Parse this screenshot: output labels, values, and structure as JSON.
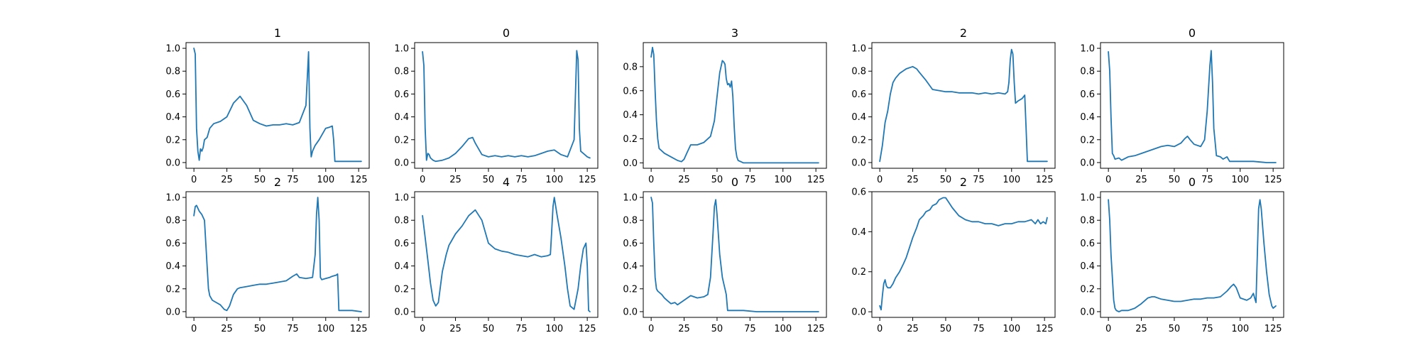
{
  "colors": {
    "series": "#1f77b4",
    "axes": "#000000",
    "background": "#ffffff"
  },
  "chart_data": [
    {
      "type": "line",
      "title": "1",
      "xlim": [
        -6,
        133
      ],
      "ylim": [
        -0.05,
        1.05
      ],
      "xticks": [
        0,
        25,
        50,
        75,
        100,
        125
      ],
      "yticks": [
        0.0,
        0.2,
        0.4,
        0.6,
        0.8,
        1.0
      ],
      "grid": false,
      "series": [
        {
          "x": [
            0,
            1,
            2,
            3,
            4,
            5,
            6,
            7,
            8,
            10,
            12,
            15,
            20,
            25,
            30,
            35,
            40,
            45,
            50,
            55,
            60,
            65,
            70,
            75,
            80,
            85,
            87,
            88,
            89,
            90,
            92,
            95,
            100,
            103,
            105,
            106,
            107,
            110,
            115,
            120,
            127
          ],
          "y": [
            1.0,
            0.95,
            0.3,
            0.1,
            0.02,
            0.12,
            0.1,
            0.13,
            0.2,
            0.22,
            0.3,
            0.34,
            0.36,
            0.4,
            0.52,
            0.58,
            0.5,
            0.37,
            0.34,
            0.32,
            0.33,
            0.33,
            0.34,
            0.33,
            0.35,
            0.5,
            0.97,
            0.3,
            0.05,
            0.1,
            0.15,
            0.2,
            0.3,
            0.31,
            0.32,
            0.2,
            0.01,
            0.01,
            0.01,
            0.01,
            0.01
          ]
        }
      ]
    },
    {
      "type": "line",
      "title": "0",
      "xlim": [
        -6,
        133
      ],
      "ylim": [
        -0.05,
        1.05
      ],
      "xticks": [
        0,
        25,
        50,
        75,
        100,
        125
      ],
      "yticks": [
        0.0,
        0.2,
        0.4,
        0.6,
        0.8,
        1.0
      ],
      "grid": false,
      "series": [
        {
          "x": [
            0,
            1,
            2,
            3,
            4,
            5,
            6,
            8,
            10,
            15,
            20,
            25,
            30,
            35,
            38,
            40,
            45,
            50,
            55,
            60,
            65,
            70,
            75,
            80,
            85,
            90,
            95,
            100,
            105,
            110,
            115,
            117,
            118,
            119,
            120,
            122,
            125,
            127
          ],
          "y": [
            0.97,
            0.85,
            0.3,
            0.02,
            0.08,
            0.07,
            0.04,
            0.02,
            0.01,
            0.02,
            0.04,
            0.08,
            0.14,
            0.21,
            0.22,
            0.17,
            0.07,
            0.05,
            0.06,
            0.05,
            0.06,
            0.05,
            0.06,
            0.05,
            0.06,
            0.08,
            0.1,
            0.11,
            0.07,
            0.05,
            0.2,
            0.98,
            0.9,
            0.3,
            0.1,
            0.08,
            0.05,
            0.04
          ]
        }
      ]
    },
    {
      "type": "line",
      "title": "3",
      "xlim": [
        -6,
        133
      ],
      "ylim": [
        -0.045,
        1.0
      ],
      "xticks": [
        0,
        25,
        50,
        75,
        100,
        125
      ],
      "yticks": [
        0.0,
        0.2,
        0.4,
        0.6,
        0.8
      ],
      "grid": false,
      "series": [
        {
          "x": [
            0,
            1,
            2,
            3,
            4,
            5,
            6,
            8,
            10,
            15,
            20,
            23,
            25,
            27,
            30,
            35,
            40,
            45,
            48,
            50,
            52,
            54,
            55,
            56,
            57,
            58,
            59,
            60,
            61,
            62,
            63,
            64,
            65,
            66,
            68,
            70,
            75,
            80,
            90,
            100,
            110,
            120,
            127
          ],
          "y": [
            0.88,
            0.96,
            0.9,
            0.6,
            0.35,
            0.2,
            0.12,
            0.1,
            0.08,
            0.05,
            0.02,
            0.01,
            0.03,
            0.08,
            0.15,
            0.15,
            0.17,
            0.22,
            0.35,
            0.55,
            0.75,
            0.85,
            0.84,
            0.82,
            0.7,
            0.65,
            0.66,
            0.63,
            0.68,
            0.55,
            0.3,
            0.12,
            0.05,
            0.02,
            0.01,
            0.0,
            0.0,
            0.0,
            0.0,
            0.0,
            0.0,
            0.0,
            0.0
          ]
        }
      ]
    },
    {
      "type": "line",
      "title": "2",
      "xlim": [
        -6,
        133
      ],
      "ylim": [
        -0.05,
        1.05
      ],
      "xticks": [
        0,
        25,
        50,
        75,
        100,
        125
      ],
      "yticks": [
        0.0,
        0.2,
        0.4,
        0.6,
        0.8,
        1.0
      ],
      "grid": false,
      "series": [
        {
          "x": [
            0,
            2,
            4,
            6,
            8,
            10,
            12,
            15,
            20,
            25,
            28,
            30,
            35,
            40,
            45,
            50,
            55,
            60,
            65,
            70,
            75,
            80,
            85,
            90,
            95,
            97,
            98,
            99,
            100,
            101,
            102,
            103,
            105,
            108,
            110,
            111,
            112,
            115,
            120,
            127
          ],
          "y": [
            0.01,
            0.15,
            0.35,
            0.45,
            0.6,
            0.7,
            0.74,
            0.78,
            0.82,
            0.84,
            0.82,
            0.79,
            0.72,
            0.64,
            0.63,
            0.62,
            0.62,
            0.61,
            0.61,
            0.61,
            0.6,
            0.61,
            0.6,
            0.61,
            0.6,
            0.62,
            0.7,
            0.9,
            0.99,
            0.95,
            0.7,
            0.52,
            0.54,
            0.56,
            0.59,
            0.3,
            0.01,
            0.01,
            0.01,
            0.01
          ]
        }
      ]
    },
    {
      "type": "line",
      "title": "0",
      "xlim": [
        -6,
        133
      ],
      "ylim": [
        -0.05,
        1.05
      ],
      "xticks": [
        0,
        25,
        50,
        75,
        100,
        125
      ],
      "yticks": [
        0.0,
        0.2,
        0.4,
        0.6,
        0.8,
        1.0
      ],
      "grid": false,
      "series": [
        {
          "x": [
            0,
            1,
            2,
            3,
            4,
            5,
            8,
            10,
            15,
            20,
            25,
            30,
            35,
            40,
            45,
            50,
            55,
            58,
            60,
            62,
            65,
            70,
            73,
            75,
            77,
            78,
            79,
            80,
            82,
            85,
            87,
            90,
            92,
            95,
            100,
            110,
            120,
            127
          ],
          "y": [
            0.97,
            0.8,
            0.4,
            0.08,
            0.06,
            0.03,
            0.04,
            0.02,
            0.05,
            0.06,
            0.08,
            0.1,
            0.12,
            0.14,
            0.15,
            0.14,
            0.17,
            0.21,
            0.23,
            0.2,
            0.16,
            0.14,
            0.2,
            0.45,
            0.85,
            0.98,
            0.7,
            0.3,
            0.06,
            0.05,
            0.03,
            0.05,
            0.01,
            0.01,
            0.01,
            0.01,
            0.0,
            0.0
          ]
        }
      ]
    },
    {
      "type": "line",
      "title": "2",
      "xlim": [
        -6,
        133
      ],
      "ylim": [
        -0.05,
        1.05
      ],
      "xticks": [
        0,
        25,
        50,
        75,
        100,
        125
      ],
      "yticks": [
        0.0,
        0.2,
        0.4,
        0.6,
        0.8,
        1.0
      ],
      "grid": false,
      "series": [
        {
          "x": [
            0,
            1,
            2,
            4,
            6,
            8,
            10,
            11,
            12,
            14,
            17,
            20,
            23,
            25,
            27,
            30,
            33,
            35,
            40,
            45,
            50,
            55,
            60,
            65,
            70,
            75,
            78,
            80,
            85,
            90,
            92,
            93,
            94,
            95,
            96,
            97,
            100,
            103,
            105,
            108,
            109,
            110,
            115,
            120,
            127
          ],
          "y": [
            0.84,
            0.92,
            0.93,
            0.88,
            0.85,
            0.8,
            0.4,
            0.2,
            0.14,
            0.1,
            0.08,
            0.06,
            0.02,
            0.01,
            0.05,
            0.15,
            0.2,
            0.21,
            0.22,
            0.23,
            0.24,
            0.24,
            0.25,
            0.26,
            0.27,
            0.31,
            0.33,
            0.3,
            0.29,
            0.3,
            0.5,
            0.85,
            1.0,
            0.8,
            0.3,
            0.28,
            0.29,
            0.3,
            0.31,
            0.32,
            0.33,
            0.01,
            0.01,
            0.01,
            0.0
          ]
        }
      ]
    },
    {
      "type": "line",
      "title": "4",
      "xlim": [
        -6,
        133
      ],
      "ylim": [
        -0.05,
        1.05
      ],
      "xticks": [
        0,
        25,
        50,
        75,
        100,
        125
      ],
      "yticks": [
        0.0,
        0.2,
        0.4,
        0.6,
        0.8,
        1.0
      ],
      "grid": false,
      "series": [
        {
          "x": [
            0,
            2,
            4,
            6,
            8,
            10,
            12,
            15,
            18,
            20,
            25,
            30,
            35,
            40,
            45,
            50,
            55,
            60,
            65,
            70,
            75,
            80,
            85,
            90,
            95,
            97,
            98,
            99,
            100,
            102,
            105,
            108,
            110,
            112,
            115,
            118,
            120,
            122,
            124,
            125,
            126,
            127
          ],
          "y": [
            0.84,
            0.65,
            0.45,
            0.25,
            0.1,
            0.05,
            0.08,
            0.35,
            0.5,
            0.58,
            0.68,
            0.75,
            0.84,
            0.89,
            0.8,
            0.6,
            0.55,
            0.53,
            0.52,
            0.5,
            0.49,
            0.48,
            0.5,
            0.48,
            0.49,
            0.5,
            0.7,
            0.92,
            1.0,
            0.85,
            0.65,
            0.4,
            0.2,
            0.05,
            0.02,
            0.2,
            0.4,
            0.55,
            0.6,
            0.4,
            0.01,
            0.0
          ]
        }
      ]
    },
    {
      "type": "line",
      "title": "0",
      "xlim": [
        -6,
        133
      ],
      "ylim": [
        -0.05,
        1.05
      ],
      "xticks": [
        0,
        25,
        50,
        75,
        100,
        125
      ],
      "yticks": [
        0.0,
        0.2,
        0.4,
        0.6,
        0.8,
        1.0
      ],
      "grid": false,
      "series": [
        {
          "x": [
            0,
            1,
            2,
            3,
            4,
            5,
            8,
            10,
            12,
            15,
            18,
            20,
            25,
            30,
            35,
            40,
            43,
            45,
            47,
            48,
            49,
            50,
            52,
            54,
            55,
            56,
            57,
            58,
            60,
            70,
            80,
            90,
            100,
            110,
            120,
            127
          ],
          "y": [
            1.0,
            0.95,
            0.6,
            0.3,
            0.2,
            0.18,
            0.15,
            0.12,
            0.1,
            0.07,
            0.08,
            0.06,
            0.1,
            0.14,
            0.12,
            0.13,
            0.15,
            0.3,
            0.7,
            0.92,
            0.98,
            0.85,
            0.5,
            0.3,
            0.25,
            0.2,
            0.15,
            0.01,
            0.01,
            0.01,
            0.0,
            0.0,
            0.0,
            0.0,
            0.0,
            0.0
          ]
        }
      ]
    },
    {
      "type": "line",
      "title": "2",
      "xlim": [
        -6,
        133
      ],
      "ylim": [
        -0.028,
        0.6
      ],
      "xticks": [
        0,
        25,
        50,
        75,
        100,
        125
      ],
      "yticks": [
        0.0,
        0.2,
        0.4,
        0.6
      ],
      "grid": false,
      "series": [
        {
          "x": [
            0,
            1,
            2,
            3,
            4,
            5,
            6,
            8,
            10,
            12,
            15,
            18,
            20,
            22,
            25,
            28,
            30,
            33,
            35,
            38,
            40,
            43,
            45,
            48,
            50,
            52,
            55,
            60,
            65,
            70,
            75,
            80,
            85,
            90,
            95,
            100,
            105,
            110,
            115,
            118,
            120,
            122,
            124,
            126,
            127
          ],
          "y": [
            0.03,
            0.01,
            0.08,
            0.14,
            0.16,
            0.13,
            0.12,
            0.12,
            0.14,
            0.17,
            0.2,
            0.24,
            0.27,
            0.31,
            0.37,
            0.42,
            0.46,
            0.48,
            0.5,
            0.51,
            0.53,
            0.54,
            0.56,
            0.57,
            0.57,
            0.55,
            0.52,
            0.48,
            0.46,
            0.45,
            0.45,
            0.44,
            0.44,
            0.43,
            0.44,
            0.44,
            0.45,
            0.45,
            0.46,
            0.44,
            0.46,
            0.44,
            0.45,
            0.44,
            0.47
          ]
        }
      ]
    },
    {
      "type": "line",
      "title": "0",
      "xlim": [
        -6,
        133
      ],
      "ylim": [
        -0.05,
        1.05
      ],
      "xticks": [
        0,
        25,
        50,
        75,
        100,
        125
      ],
      "yticks": [
        0.0,
        0.2,
        0.4,
        0.6,
        0.8,
        1.0
      ],
      "grid": false,
      "series": [
        {
          "x": [
            0,
            1,
            2,
            3,
            4,
            5,
            6,
            8,
            10,
            15,
            20,
            25,
            30,
            33,
            35,
            40,
            45,
            50,
            55,
            60,
            65,
            70,
            75,
            80,
            85,
            90,
            93,
            95,
            97,
            100,
            105,
            108,
            110,
            112,
            113,
            114,
            115,
            116,
            118,
            120,
            122,
            124,
            125,
            127
          ],
          "y": [
            0.98,
            0.8,
            0.5,
            0.3,
            0.1,
            0.03,
            0.01,
            0.0,
            0.01,
            0.01,
            0.03,
            0.07,
            0.12,
            0.13,
            0.13,
            0.11,
            0.1,
            0.09,
            0.09,
            0.1,
            0.11,
            0.11,
            0.12,
            0.12,
            0.13,
            0.18,
            0.22,
            0.24,
            0.21,
            0.12,
            0.1,
            0.12,
            0.16,
            0.08,
            0.5,
            0.9,
            0.98,
            0.9,
            0.6,
            0.35,
            0.15,
            0.05,
            0.03,
            0.05
          ]
        }
      ]
    }
  ]
}
